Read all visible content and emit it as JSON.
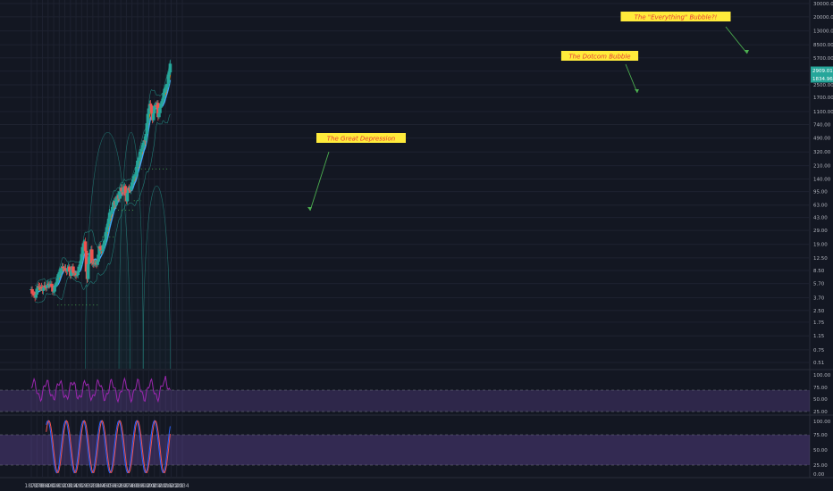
{
  "chart_data": {
    "type": "candlestick",
    "title": "",
    "x_axis": {
      "ticks": [
        "1872",
        "1878",
        "1884",
        "1890",
        "1896",
        "1902",
        "1908",
        "1914",
        "1920",
        "1926",
        "1932",
        "1938",
        "1944",
        "1950",
        "1956",
        "1962",
        "1968",
        "1974",
        "1980",
        "1986",
        "1992",
        "1998",
        "2004",
        "2010",
        "2016",
        "2022",
        "2028",
        "2034"
      ]
    },
    "price_axis": {
      "scale": "log",
      "ticks": [
        "30000.00",
        "20000.00",
        "13000.00",
        "8500.00",
        "5700.00",
        "3800.00",
        "2500.00",
        "1700.00",
        "1100.00",
        "740.00",
        "490.00",
        "320.00",
        "210.00",
        "140.00",
        "95.00",
        "63.00",
        "43.00",
        "29.00",
        "19.00",
        "12.50",
        "8.50",
        "5.70",
        "3.70",
        "2.50",
        "1.75",
        "1.15",
        "0.75",
        "0.51"
      ],
      "labels": [
        {
          "text": "2909.01",
          "color": "#26a69a"
        },
        {
          "text": "1834.96",
          "color": "#26a69a"
        }
      ]
    },
    "rsi_axis": {
      "ticks": [
        "100.00",
        "75.00",
        "50.00",
        "25.00"
      ]
    },
    "stoch_axis": {
      "ticks": [
        "100.00",
        "75.00",
        "50.00",
        "25.00",
        "0.00"
      ]
    },
    "annotations": [
      {
        "text": "The Great Depression",
        "year": 1930,
        "price": 13
      },
      {
        "text": "The Dotcom Bubble",
        "year": 2000,
        "price": 1500
      },
      {
        "text": "The \"Everything\" Bubble?!",
        "year": 2021,
        "price": 3900
      }
    ],
    "series": {
      "close": [
        {
          "x": 1872,
          "y": 4.7
        },
        {
          "x": 1876,
          "y": 3.8
        },
        {
          "x": 1880,
          "y": 5.5
        },
        {
          "x": 1884,
          "y": 4.7
        },
        {
          "x": 1888,
          "y": 5.4
        },
        {
          "x": 1892,
          "y": 5.6
        },
        {
          "x": 1896,
          "y": 4.6
        },
        {
          "x": 1900,
          "y": 6.5
        },
        {
          "x": 1902,
          "y": 8.3
        },
        {
          "x": 1906,
          "y": 9.4
        },
        {
          "x": 1908,
          "y": 8.8
        },
        {
          "x": 1912,
          "y": 9.0
        },
        {
          "x": 1914,
          "y": 7.4
        },
        {
          "x": 1916,
          "y": 9.6
        },
        {
          "x": 1918,
          "y": 7.6
        },
        {
          "x": 1920,
          "y": 7.0
        },
        {
          "x": 1922,
          "y": 8.4
        },
        {
          "x": 1924,
          "y": 10.5
        },
        {
          "x": 1926,
          "y": 13.4
        },
        {
          "x": 1928,
          "y": 20
        },
        {
          "x": 1929,
          "y": 21.5
        },
        {
          "x": 1930,
          "y": 15.3
        },
        {
          "x": 1931,
          "y": 8.3
        },
        {
          "x": 1932,
          "y": 6.9
        },
        {
          "x": 1933,
          "y": 10.1
        },
        {
          "x": 1936,
          "y": 17.2
        },
        {
          "x": 1937,
          "y": 10.6
        },
        {
          "x": 1940,
          "y": 10.6
        },
        {
          "x": 1942,
          "y": 9.8
        },
        {
          "x": 1945,
          "y": 17.4
        },
        {
          "x": 1948,
          "y": 15.2
        },
        {
          "x": 1950,
          "y": 20.4
        },
        {
          "x": 1954,
          "y": 35.9
        },
        {
          "x": 1956,
          "y": 46.7
        },
        {
          "x": 1958,
          "y": 55.2
        },
        {
          "x": 1961,
          "y": 71.5
        },
        {
          "x": 1962,
          "y": 63.1
        },
        {
          "x": 1965,
          "y": 92.4
        },
        {
          "x": 1966,
          "y": 80.3
        },
        {
          "x": 1968,
          "y": 103.9
        },
        {
          "x": 1970,
          "y": 92.2
        },
        {
          "x": 1972,
          "y": 118.1
        },
        {
          "x": 1974,
          "y": 68.6
        },
        {
          "x": 1976,
          "y": 107.5
        },
        {
          "x": 1978,
          "y": 96.1
        },
        {
          "x": 1980,
          "y": 135.8
        },
        {
          "x": 1982,
          "y": 140.6
        },
        {
          "x": 1984,
          "y": 167.2
        },
        {
          "x": 1986,
          "y": 242.2
        },
        {
          "x": 1988,
          "y": 277.7
        },
        {
          "x": 1990,
          "y": 330.2
        },
        {
          "x": 1992,
          "y": 435.7
        },
        {
          "x": 1994,
          "y": 459.3
        },
        {
          "x": 1996,
          "y": 740.7
        },
        {
          "x": 1998,
          "y": 1229.2
        },
        {
          "x": 1999,
          "y": 1469.3
        },
        {
          "x": 2000,
          "y": 1320.3
        },
        {
          "x": 2002,
          "y": 879.8
        },
        {
          "x": 2004,
          "y": 1211.9
        },
        {
          "x": 2006,
          "y": 1418.3
        },
        {
          "x": 2007,
          "y": 1468.4
        },
        {
          "x": 2008,
          "y": 903.3
        },
        {
          "x": 2010,
          "y": 1257.6
        },
        {
          "x": 2012,
          "y": 1426.2
        },
        {
          "x": 2014,
          "y": 2058.9
        },
        {
          "x": 2016,
          "y": 2238.8
        },
        {
          "x": 2018,
          "y": 2506.9
        },
        {
          "x": 2019,
          "y": 3230.8
        },
        {
          "x": 2020,
          "y": 3756.1
        },
        {
          "x": 2021,
          "y": 4766.2
        }
      ]
    },
    "indicators": [
      "EMA",
      "SMA",
      "Bollinger Bands",
      "RSI",
      "Stochastic"
    ],
    "colors": {
      "bull": "#26a69a",
      "bear": "#ef5350",
      "ema": "#f57c00",
      "sma": "#42a5f5",
      "band": "#26a69a",
      "rsi": "#9c27b0",
      "stoch_k": "#2962ff",
      "stoch_d": "#ef5350",
      "annotation_bg": "#ffeb3b",
      "annotation_text": "#e53935",
      "arrow": "#4caf50"
    }
  }
}
